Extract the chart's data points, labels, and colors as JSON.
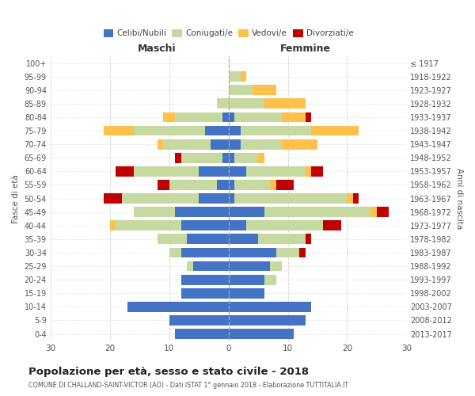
{
  "age_groups": [
    "0-4",
    "5-9",
    "10-14",
    "15-19",
    "20-24",
    "25-29",
    "30-34",
    "35-39",
    "40-44",
    "45-49",
    "50-54",
    "55-59",
    "60-64",
    "65-69",
    "70-74",
    "75-79",
    "80-84",
    "85-89",
    "90-94",
    "95-99",
    "100+"
  ],
  "birth_years": [
    "2013-2017",
    "2008-2012",
    "2003-2007",
    "1998-2002",
    "1993-1997",
    "1988-1992",
    "1983-1987",
    "1978-1982",
    "1973-1977",
    "1968-1972",
    "1963-1967",
    "1958-1962",
    "1953-1957",
    "1948-1952",
    "1943-1947",
    "1938-1942",
    "1933-1937",
    "1928-1932",
    "1923-1927",
    "1918-1922",
    "≤ 1917"
  ],
  "males": {
    "celibe": [
      9,
      10,
      17,
      8,
      8,
      6,
      8,
      7,
      8,
      9,
      5,
      2,
      5,
      1,
      3,
      4,
      1,
      0,
      0,
      0,
      0
    ],
    "coniugato": [
      0,
      0,
      0,
      0,
      0,
      1,
      2,
      5,
      11,
      7,
      13,
      8,
      11,
      7,
      8,
      12,
      8,
      2,
      0,
      0,
      0
    ],
    "vedovo": [
      0,
      0,
      0,
      0,
      0,
      0,
      0,
      0,
      1,
      0,
      0,
      0,
      0,
      0,
      1,
      5,
      2,
      0,
      0,
      0,
      0
    ],
    "divorziato": [
      0,
      0,
      0,
      0,
      0,
      0,
      0,
      0,
      0,
      0,
      3,
      2,
      3,
      1,
      0,
      0,
      0,
      0,
      0,
      0,
      0
    ]
  },
  "females": {
    "nubile": [
      11,
      13,
      14,
      6,
      6,
      7,
      8,
      5,
      3,
      6,
      1,
      1,
      3,
      1,
      2,
      2,
      1,
      0,
      0,
      0,
      0
    ],
    "coniugata": [
      0,
      0,
      0,
      0,
      2,
      2,
      4,
      8,
      13,
      18,
      19,
      6,
      10,
      4,
      7,
      12,
      8,
      6,
      4,
      2,
      0
    ],
    "vedova": [
      0,
      0,
      0,
      0,
      0,
      0,
      0,
      0,
      0,
      1,
      1,
      1,
      1,
      1,
      6,
      8,
      4,
      7,
      4,
      1,
      0
    ],
    "divorziata": [
      0,
      0,
      0,
      0,
      0,
      0,
      1,
      1,
      3,
      2,
      1,
      3,
      2,
      0,
      0,
      0,
      1,
      0,
      0,
      0,
      0
    ]
  },
  "colors": {
    "celibe": "#4472c4",
    "coniugato": "#c5d9a0",
    "vedovo": "#ffc04c",
    "divorziato": "#c00000"
  },
  "title": "Popolazione per età, sesso e stato civile - 2018",
  "subtitle": "COMUNE DI CHALLAND-SAINT-VICTOR (AO) - Dati ISTAT 1° gennaio 2018 - Elaborazione TUTTITALIA.IT",
  "ylabel": "Fasce di età",
  "ylabel2": "Anni di nascita",
  "xlabel_maschi": "Maschi",
  "xlabel_femmine": "Femmine",
  "xlim": 30,
  "background_color": "#ffffff",
  "grid_color": "#cccccc"
}
